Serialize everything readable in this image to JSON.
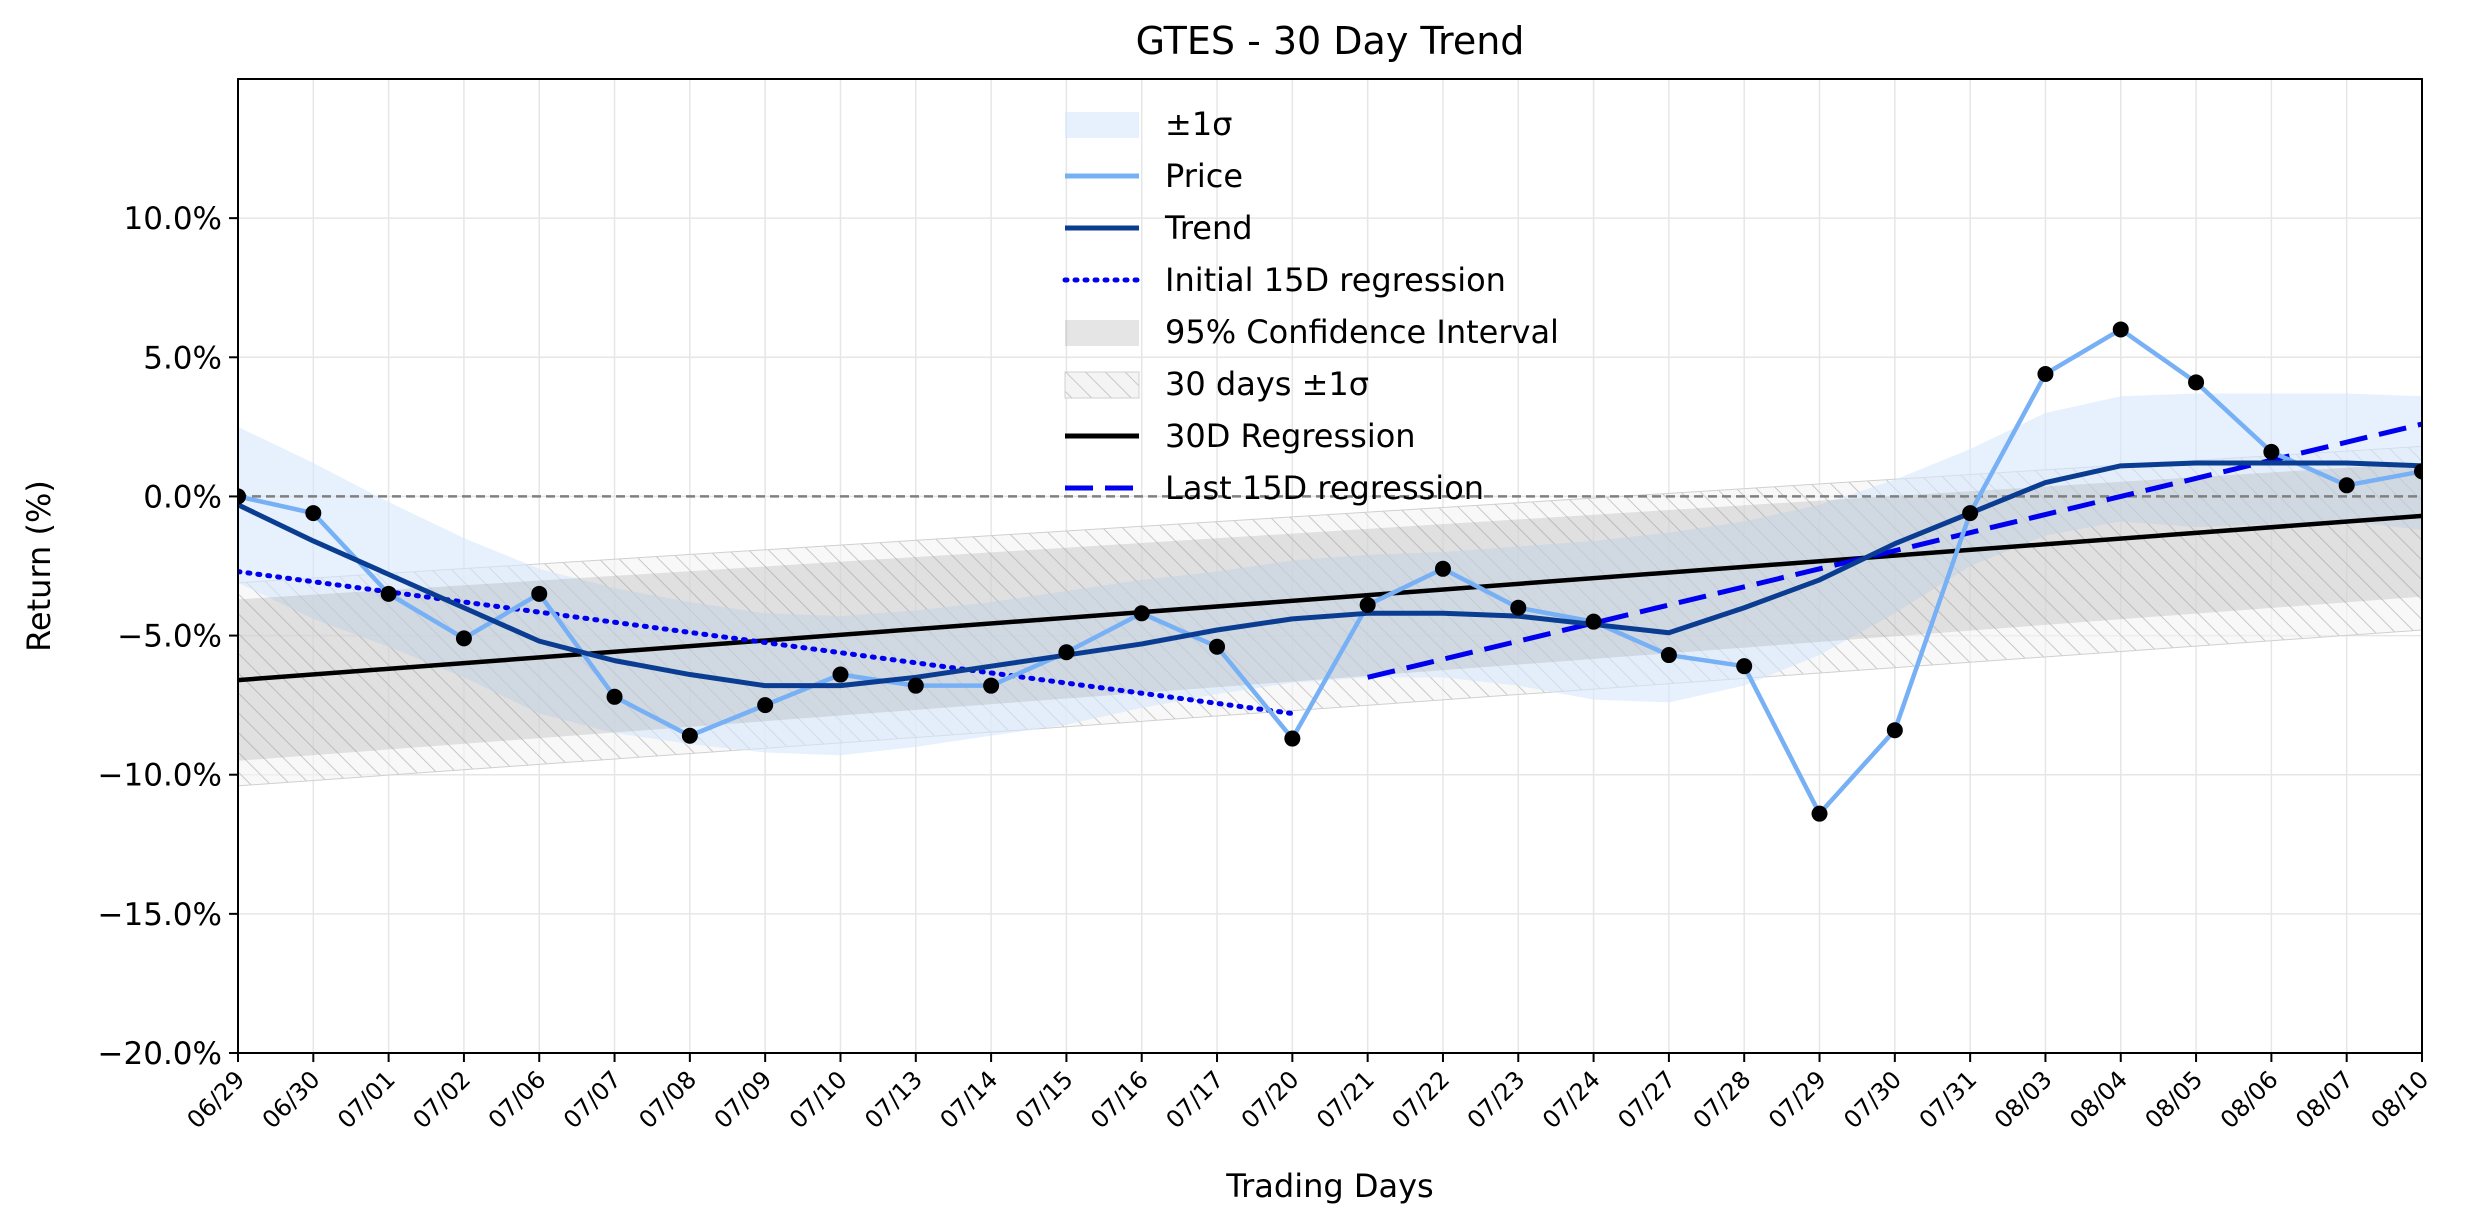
{
  "chart_data": {
    "type": "line",
    "title": "GTES - 30 Day Trend",
    "xlabel": "Trading Days",
    "ylabel": "Return (%)",
    "categories": [
      "06/29",
      "06/30",
      "07/01",
      "07/02",
      "07/06",
      "07/07",
      "07/08",
      "07/09",
      "07/10",
      "07/13",
      "07/14",
      "07/15",
      "07/16",
      "07/17",
      "07/20",
      "07/21",
      "07/22",
      "07/23",
      "07/24",
      "07/27",
      "07/28",
      "07/29",
      "07/30",
      "07/31",
      "08/03",
      "08/04",
      "08/05",
      "08/06",
      "08/07",
      "08/10"
    ],
    "ylim": [
      -20,
      15
    ],
    "yticks": [
      -20,
      -15,
      -10,
      -5,
      0,
      5,
      10
    ],
    "ytick_labels": [
      "−20.0%",
      "−15.0%",
      "−10.0%",
      "−5.0%",
      "0.0%",
      "5.0%",
      "10.0%"
    ],
    "grid": true,
    "zero_line": 0,
    "legend_position": "top-center",
    "series": [
      {
        "name": "Price",
        "color": "#77b0f4",
        "marker_color": "#000000",
        "values": [
          0.0,
          -0.6,
          -3.5,
          -5.1,
          -3.5,
          -7.2,
          -8.6,
          -7.5,
          -6.4,
          -6.8,
          -6.8,
          -5.6,
          -4.2,
          -5.4,
          -8.7,
          -3.9,
          -2.6,
          -4.0,
          -4.5,
          -5.7,
          -6.1,
          -11.4,
          -8.4,
          -0.6,
          4.4,
          6.0,
          4.1,
          1.6,
          0.4,
          0.9
        ]
      },
      {
        "name": "Trend",
        "color": "#0a3d91",
        "values": [
          -0.3,
          -1.6,
          -2.8,
          -4.0,
          -5.2,
          -5.9,
          -6.4,
          -6.8,
          -6.8,
          -6.5,
          -6.1,
          -5.7,
          -5.3,
          -4.8,
          -4.4,
          -4.2,
          -4.2,
          -4.3,
          -4.6,
          -4.9,
          -4.0,
          -3.0,
          -1.7,
          -0.6,
          0.5,
          1.1,
          1.2,
          1.2,
          1.2,
          1.1
        ]
      }
    ],
    "sigma_band": {
      "name": "±1σ",
      "color": "#d6e8fb",
      "upper": [
        2.5,
        1.2,
        -0.2,
        -1.5,
        -2.6,
        -3.3,
        -3.8,
        -4.2,
        -4.3,
        -4.1,
        -3.8,
        -3.4,
        -3.0,
        -2.7,
        -2.3,
        -2.1,
        -2.0,
        -1.8,
        -1.6,
        -1.3,
        -0.9,
        -0.3,
        0.6,
        1.7,
        3.0,
        3.6,
        3.7,
        3.7,
        3.7,
        3.6
      ],
      "lower": [
        -3.1,
        -4.4,
        -5.4,
        -6.5,
        -7.8,
        -8.5,
        -8.9,
        -9.2,
        -9.3,
        -9.0,
        -8.6,
        -8.2,
        -7.6,
        -7.1,
        -6.7,
        -6.5,
        -6.5,
        -6.8,
        -7.3,
        -7.4,
        -6.8,
        -5.7,
        -4.2,
        -2.5,
        -1.4,
        -0.9,
        -1.1,
        -1.0,
        -0.9,
        -1.2
      ]
    },
    "regression_30d": {
      "name": "30D Regression",
      "color": "#000000",
      "start": -6.6,
      "end": -0.7
    },
    "confidence_95": {
      "name": "95% Confidence Interval",
      "color": "#999999",
      "upper_start": -3.7,
      "upper_end": 1.2,
      "lower_start": -9.5,
      "lower_end": -3.6
    },
    "band_30d_sigma": {
      "name": "30 days ±1σ",
      "color": "#bbbbbb",
      "upper_start": -3.1,
      "upper_end": 1.8,
      "lower_start": -10.4,
      "lower_end": -4.8
    },
    "initial_15d_regression": {
      "name": "Initial 15D regression",
      "color": "#0000ee",
      "start_index": 0,
      "end_index": 14,
      "start": -2.7,
      "end": -7.8
    },
    "last_15d_regression": {
      "name": "Last 15D regression",
      "color": "#0000ee",
      "start_index": 15,
      "end_index": 29,
      "start": -6.5,
      "end": 2.6
    }
  }
}
